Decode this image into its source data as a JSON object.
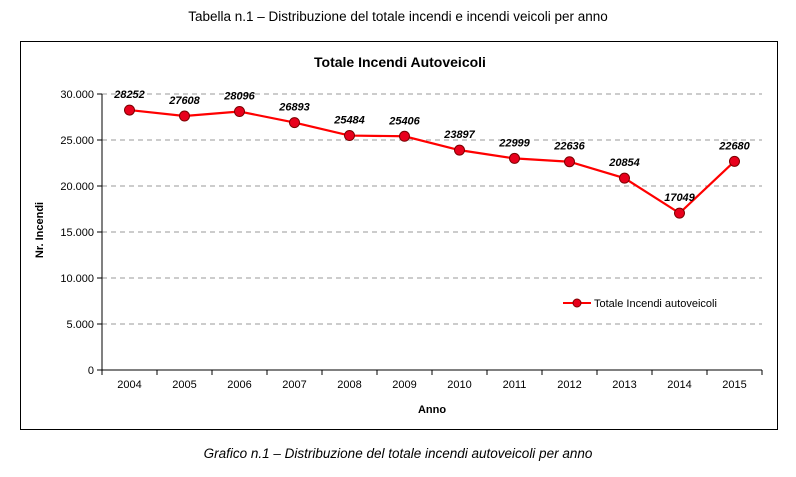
{
  "page": {
    "title": "Tabella n.1 – Distribuzione del totale incendi e incendi veicoli per anno",
    "caption": "Grafico n.1 – Distribuzione del totale incendi autoveicoli per anno"
  },
  "chart_data": {
    "type": "line",
    "title": "Totale Incendi Autoveicoli",
    "xlabel": "Anno",
    "ylabel": "Nr. Incendi",
    "categories": [
      "2004",
      "2005",
      "2006",
      "2007",
      "2008",
      "2009",
      "2010",
      "2011",
      "2012",
      "2013",
      "2014",
      "2015"
    ],
    "series": [
      {
        "name": "Totale Incendi autoveicoli",
        "values": [
          28252,
          27608,
          28096,
          26893,
          25484,
          25406,
          23897,
          22999,
          22636,
          20854,
          17049,
          22680
        ],
        "color": "#ff0000",
        "marker_color": "#e8001c"
      }
    ],
    "data_labels": [
      "28252",
      "27608",
      "28096",
      "26893",
      "25484",
      "25406",
      "23897",
      "22999",
      "22636",
      "20854",
      "17049",
      "22680"
    ],
    "ylim": [
      0,
      30000
    ],
    "yticks": [
      0,
      5000,
      10000,
      15000,
      20000,
      25000,
      30000
    ],
    "ytick_labels": [
      "0",
      "5.000",
      "10.000",
      "15.000",
      "20.000",
      "25.000",
      "30.000"
    ],
    "grid": "horizontal dashed",
    "legend_position": "inside-right"
  }
}
